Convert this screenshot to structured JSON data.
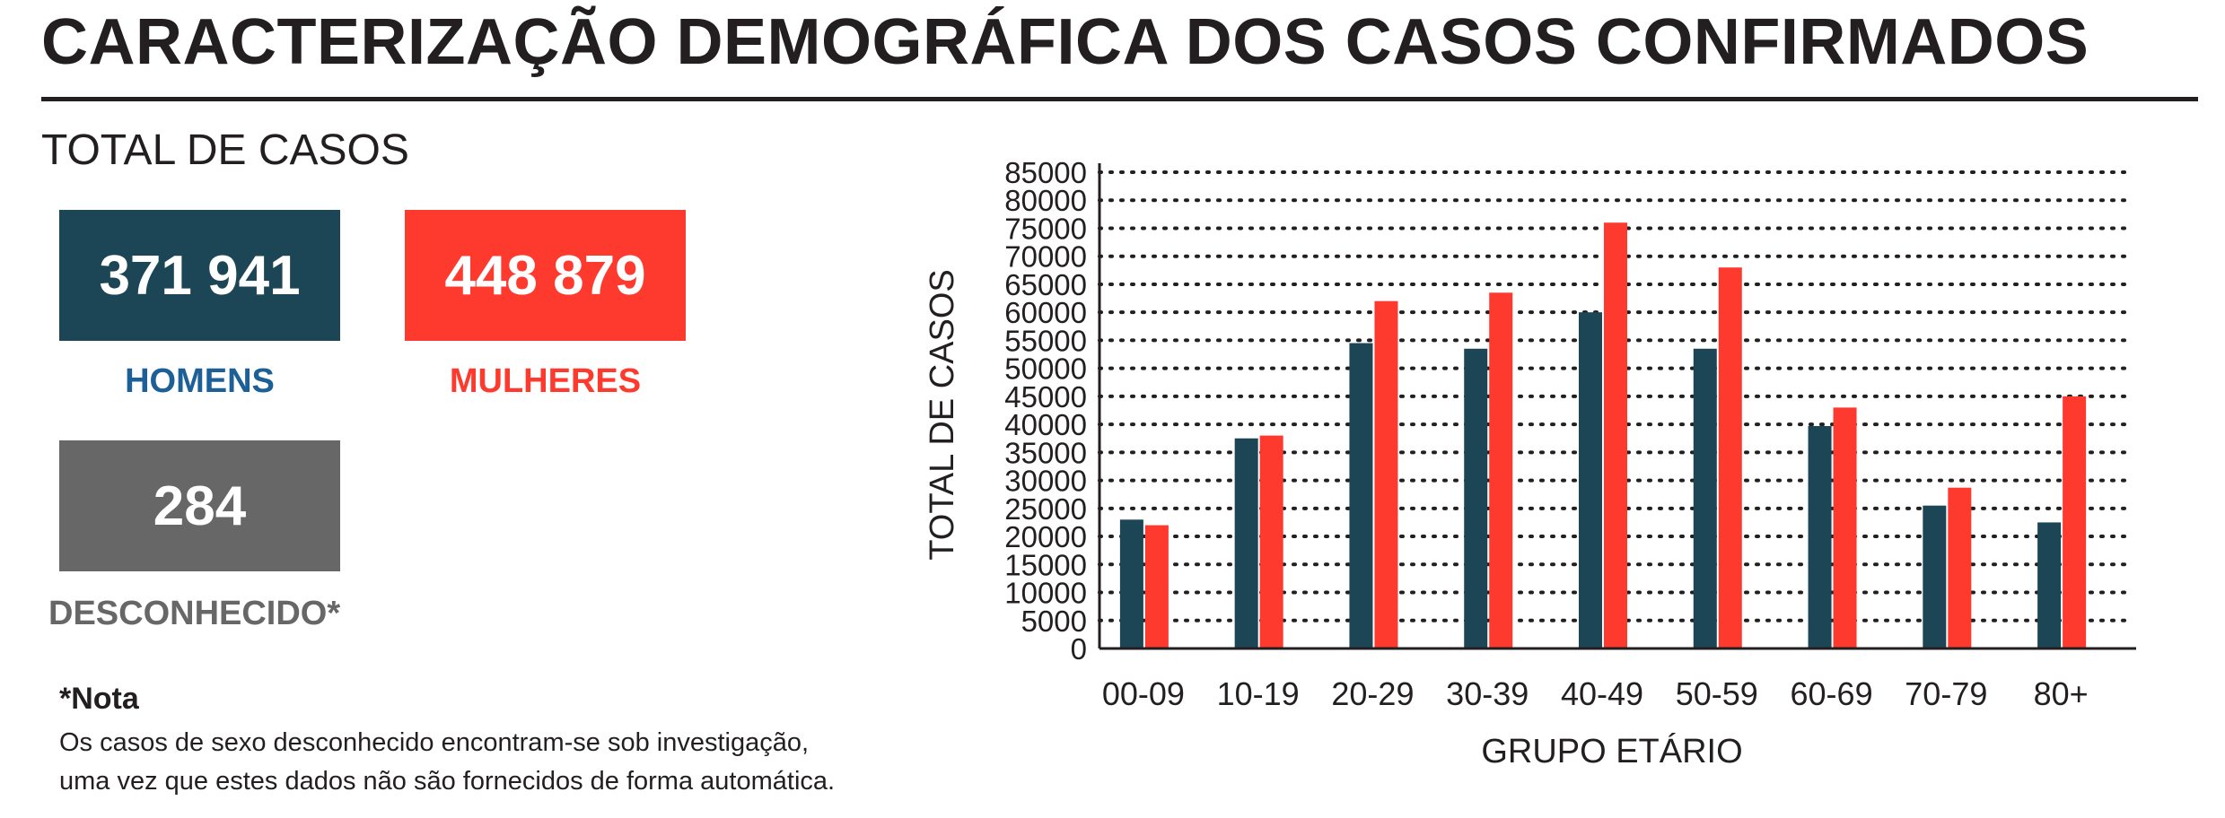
{
  "header": {
    "title": "CARACTERIZAÇÃO DEMOGRÁFICA DOS CASOS CONFIRMADOS"
  },
  "totals": {
    "section_label": "TOTAL DE CASOS",
    "men": {
      "value": "371 941",
      "label": "HOMENS",
      "color": "#1c4656",
      "label_color": "#1d5f97"
    },
    "women": {
      "value": "448 879",
      "label": "MULHERES",
      "color": "#fe3a2f"
    },
    "unknown": {
      "value": "284",
      "label": "DESCONHECIDO*",
      "color": "#676767"
    }
  },
  "note": {
    "title": "*Nota",
    "line1": "Os casos de sexo desconhecido encontram-se sob investigação,",
    "line2": "uma vez que estes dados não são fornecidos de forma automática."
  },
  "chart_data": {
    "type": "bar",
    "xlabel": "GRUPO ETÁRIO",
    "ylabel": "TOTAL DE CASOS",
    "ylim": [
      0,
      85000
    ],
    "yticks": [
      0,
      5000,
      10000,
      15000,
      20000,
      25000,
      30000,
      35000,
      40000,
      45000,
      50000,
      55000,
      60000,
      65000,
      70000,
      75000,
      80000,
      85000
    ],
    "grid": true,
    "categories": [
      "00-09",
      "10-19",
      "20-29",
      "30-39",
      "40-49",
      "50-59",
      "60-69",
      "70-79",
      "80+"
    ],
    "series": [
      {
        "color": "#1c4656",
        "values": [
          23000,
          37500,
          54500,
          53500,
          60000,
          53500,
          39700,
          25500,
          22500
        ]
      },
      {
        "color": "#fe3a2f",
        "values": [
          22000,
          38000,
          62000,
          63500,
          76000,
          68000,
          43000,
          28700,
          45000
        ]
      }
    ]
  }
}
